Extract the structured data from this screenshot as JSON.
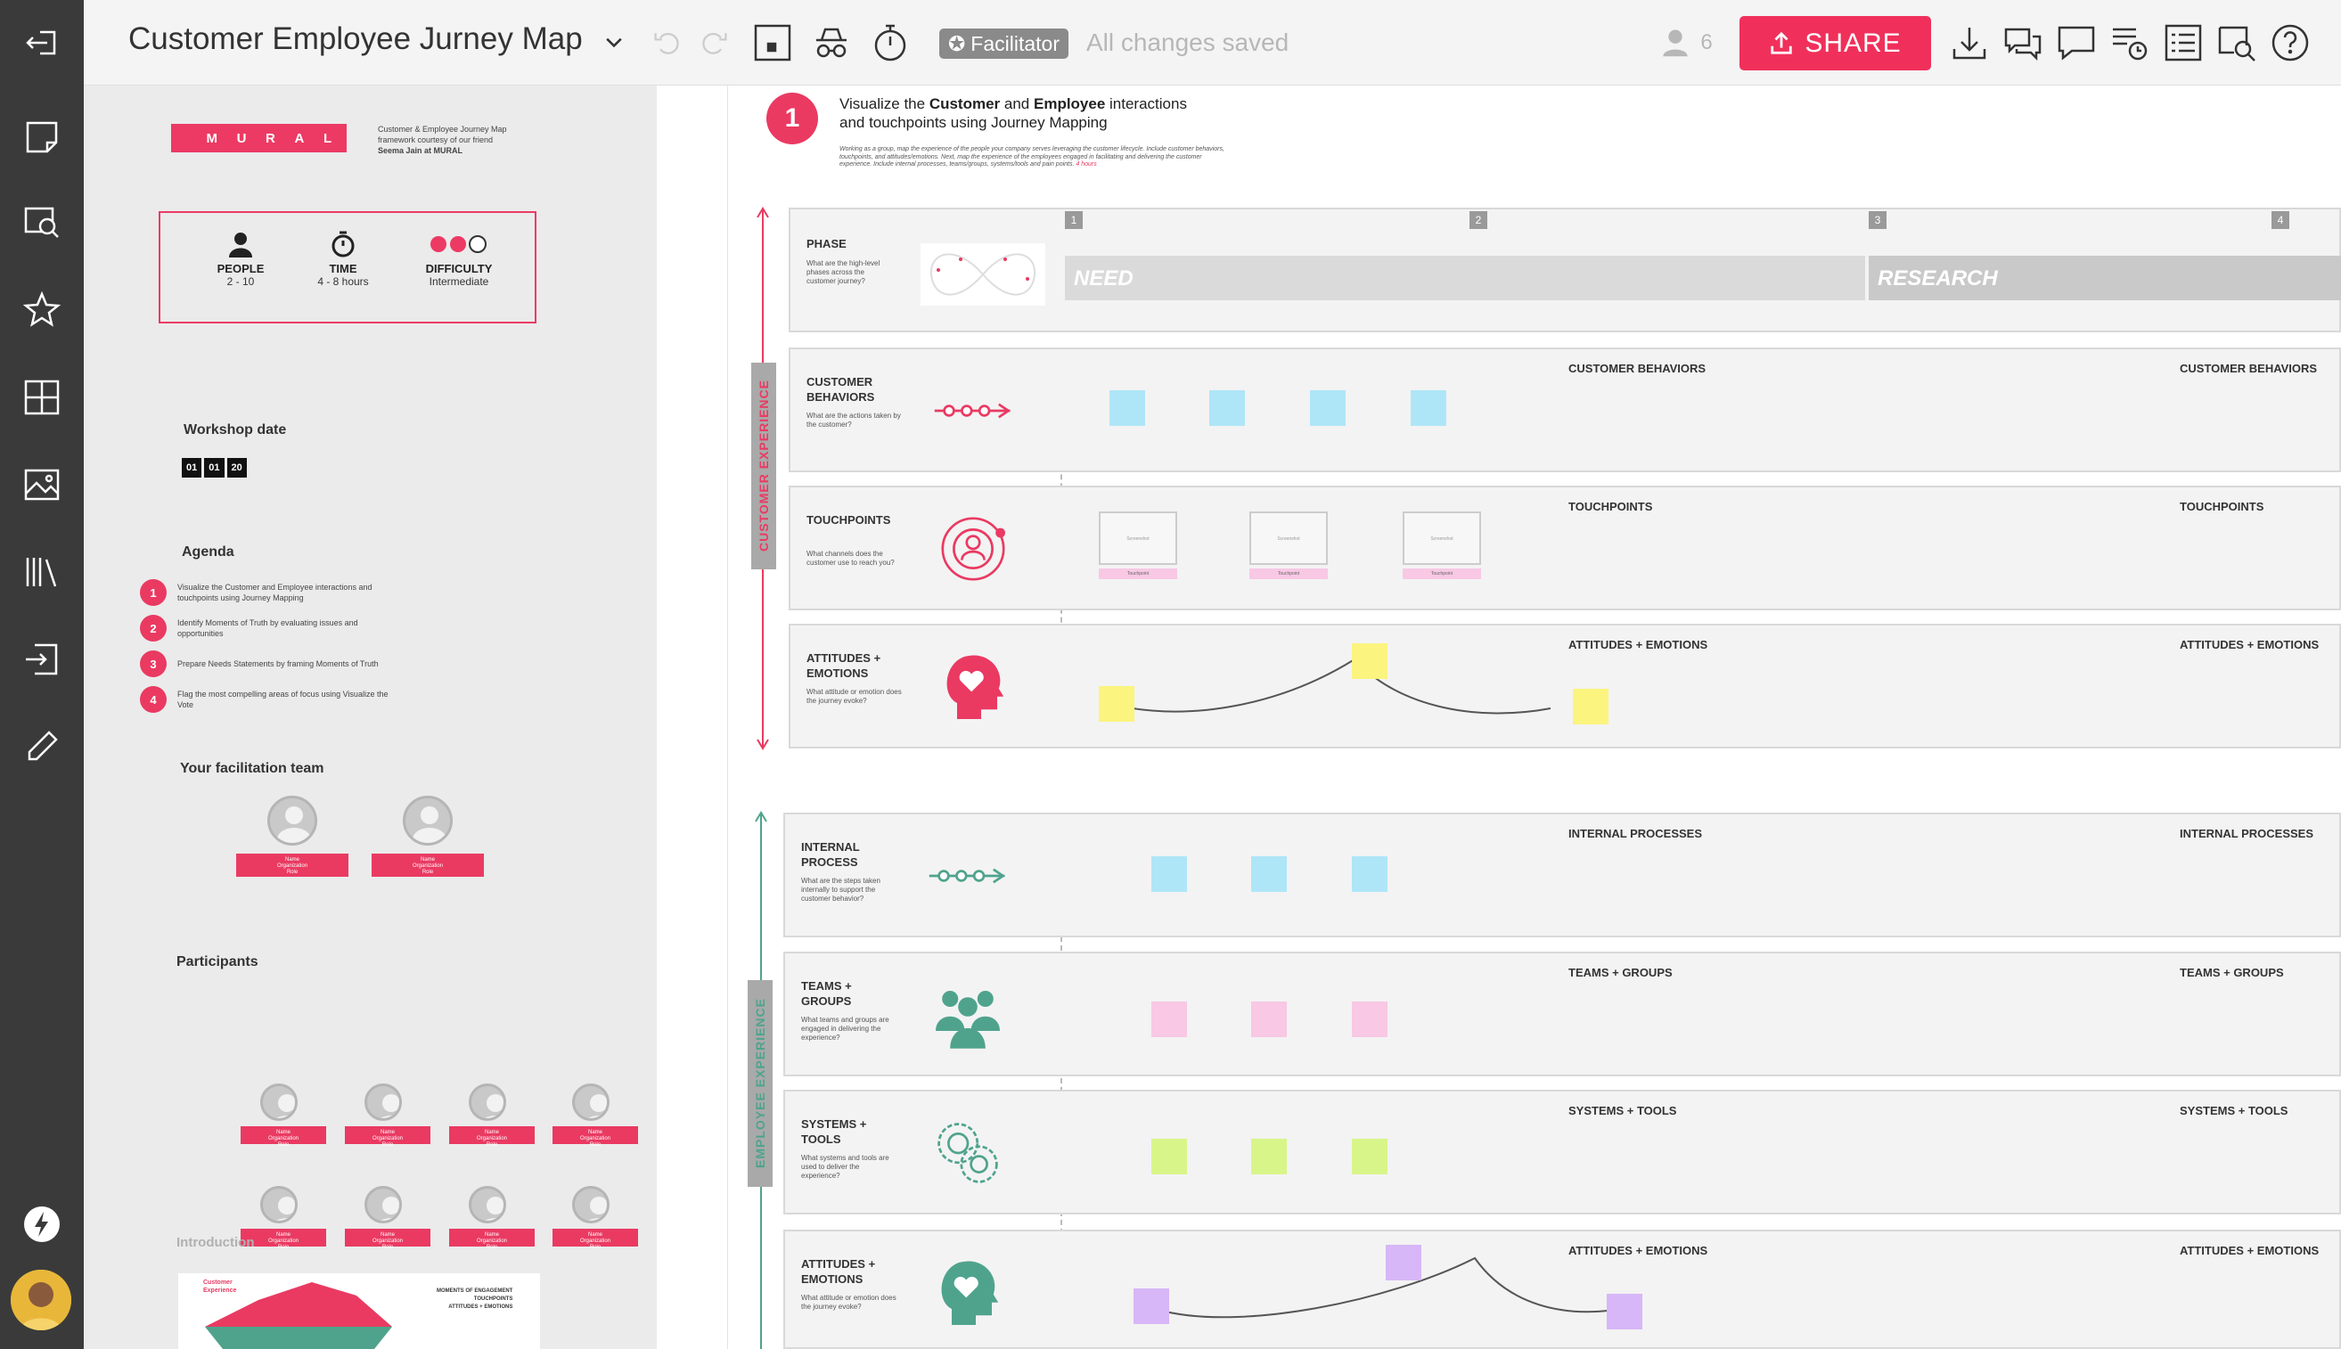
{
  "app": {
    "title": "Customer Employee Jurney Map",
    "facilitator_label": "Facilitator",
    "save_status": "All changes saved",
    "participants_count": "6",
    "share_label": "SHARE"
  },
  "panel": {
    "logo_letters": [
      "M",
      "U",
      "R",
      "A",
      "L"
    ],
    "logo_caption": [
      "Customer & Employee Journey Map",
      "framework courtesy of our friend",
      "Seema Jain at MURAL"
    ],
    "stats": [
      {
        "label": "PEOPLE",
        "value": "2 - 10"
      },
      {
        "label": "TIME",
        "value": "4 - 8 hours"
      },
      {
        "label": "DIFFICULTY",
        "value": "Intermediate"
      }
    ],
    "workshop_date_title": "Workshop date",
    "workshop_date": [
      "01",
      "01",
      "20"
    ],
    "agenda_title": "Agenda",
    "agenda": [
      {
        "num": "1",
        "text": "Visualize the Customer and Employee interactions and touchpoints using Journey Mapping"
      },
      {
        "num": "2",
        "text": "Identify Moments of Truth by evaluating issues and opportunities"
      },
      {
        "num": "3",
        "text": "Prepare Needs Statements by framing Moments of Truth"
      },
      {
        "num": "4",
        "text": "Flag the most compelling areas of focus using Visualize the Vote"
      }
    ],
    "team_title": "Your facilitation team",
    "name_card": [
      "Name",
      "Organization",
      "Role"
    ],
    "participants_title": "Participants",
    "intro_title": "Introduction",
    "intro_labels": [
      "Customer",
      "Experience",
      "MOMENTS OF ENGAGEMENT",
      "TOUCHPOINTS",
      "ATTITUDES + EMOTIONS"
    ]
  },
  "canvas": {
    "step_number": "1",
    "step_title_parts": [
      "Visualize the ",
      "Customer",
      " and ",
      "Employee",
      " interactions"
    ],
    "step_title_line2": "and touchpoints using Journey Mapping",
    "step_desc": "Working as a group, map the experience of the people your company serves leveraging the customer lifecycle. Include customer behaviors, touchpoints, and attitudes/emotions. Next, map the experience of the employees engaged in facilitating and delivering the customer experience. Include internal processes, teams/groups, systems/tools and pain points.",
    "step_time": "4 hours",
    "phase": {
      "label": "PHASE",
      "desc": "What are the high-level phases across the customer journey?",
      "numbers": [
        "1",
        "2",
        "3",
        "4"
      ],
      "names": [
        "NEED",
        "RESEARCH"
      ]
    },
    "customer_experience_label": "CUSTOMER EXPERIENCE",
    "employee_experience_label": "EMPLOYEE EXPERIENCE",
    "rows": [
      {
        "label": "CUSTOMER BEHAVIORS",
        "desc": "What are the actions taken by the customer?",
        "category": "CUSTOMER BEHAVIORS"
      },
      {
        "label": "TOUCHPOINTS",
        "desc": "What channels does the customer use to reach you?",
        "category": "TOUCHPOINTS"
      },
      {
        "label": "ATTITUDES + EMOTIONS",
        "desc": "What attitude or emotion does the journey evoke?",
        "category": "ATTITUDES + EMOTIONS"
      },
      {
        "label": "INTERNAL PROCESS",
        "desc": "What are the steps taken internally to support the customer behavior?",
        "category": "INTERNAL PROCESSES"
      },
      {
        "label": "TEAMS + GROUPS",
        "desc": "What teams and groups are engaged in delivering the experience?",
        "category": "TEAMS + GROUPS"
      },
      {
        "label": "SYSTEMS + TOOLS",
        "desc": "What systems and tools are used to deliver the experience?",
        "category": "SYSTEMS + TOOLS"
      },
      {
        "label": "ATTITUDES + EMOTIONS",
        "desc": "What attitude or emotion does the journey evoke?",
        "category": "ATTITUDES + EMOTIONS"
      }
    ],
    "touchpoint_card": {
      "screenshot": "Screenshot",
      "tag": "Touchpoint"
    }
  },
  "colors": {
    "accent": "#f0305b",
    "rail": "#3a3a3a",
    "blue_sticky": "#aee6f7",
    "yellow_sticky": "#fbf47e",
    "pink_sticky": "#f8c8e4",
    "green_sticky": "#d8f58a",
    "purple_sticky": "#d7b7f7",
    "teal": "#4fa38d"
  },
  "icons": [
    "exit-icon",
    "sticky-note-icon",
    "search-shapes-icon",
    "star-icon",
    "grid-icon",
    "image-icon",
    "library-icon",
    "import-icon",
    "pen-icon",
    "lightning-icon",
    "undo-icon",
    "redo-icon",
    "frame-icon",
    "incognito-icon",
    "timer-icon",
    "user-icon",
    "download-icon",
    "comments-icon",
    "chat-icon",
    "activity-icon",
    "outline-icon",
    "search-icon",
    "help-icon"
  ]
}
